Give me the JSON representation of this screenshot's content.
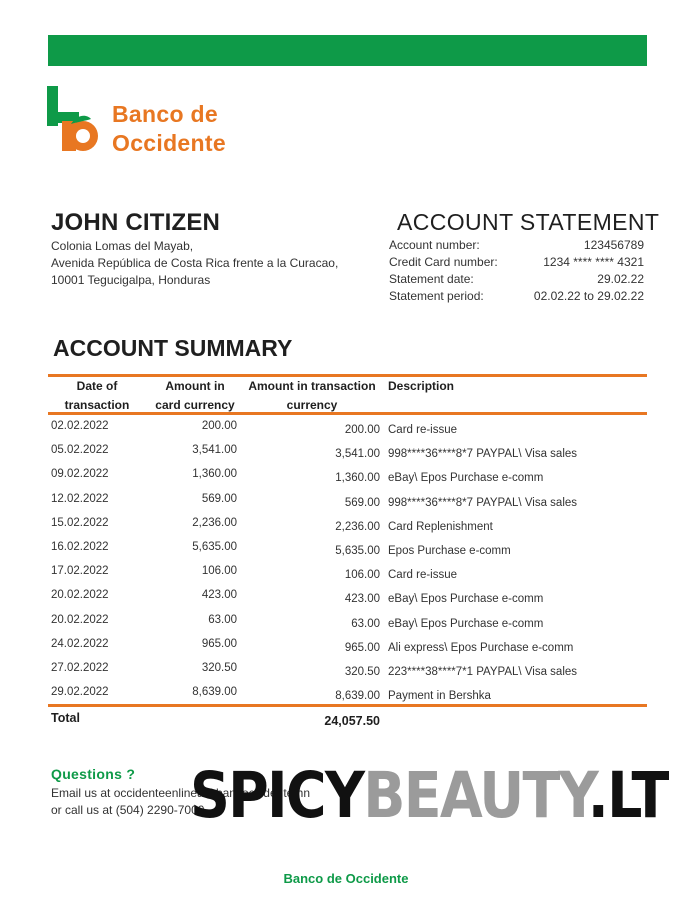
{
  "bank": {
    "logo_line1": "Banco de",
    "logo_line2": "Occidente",
    "brand_green": "#0e9a48",
    "brand_orange": "#e87722",
    "logo_icon": "bank-logo-icon"
  },
  "customer": {
    "name": "JOHN CITIZEN",
    "address_line1": "Colonia Lomas del Mayab,",
    "address_line2": "Avenida República de Costa Rica frente a la Curacao,",
    "address_line3": "10001 Tegucigalpa, Honduras"
  },
  "statement": {
    "title": "ACCOUNT STATEMENT",
    "account_number_label": "Account number:",
    "account_number": "123456789",
    "credit_card_label": "Credit Card number:",
    "credit_card": "1234 **** **** 4321",
    "statement_date_label": "Statement date:",
    "statement_date": "29.02.22",
    "statement_period_label": "Statement period:",
    "statement_period": "02.02.22 to 29.02.22"
  },
  "summary": {
    "title": "ACCOUNT SUMMARY",
    "headers": {
      "date_line1": "Date of",
      "date_line2": "transaction",
      "card_line1": "Amount in",
      "card_line2": "card currency",
      "trans_line1": "Amount in transaction",
      "trans_line2": "currency",
      "description": "Description"
    },
    "rows": [
      {
        "date": "02.02.2022",
        "card": "200.00",
        "trans": "200.00",
        "desc": "Card re-issue"
      },
      {
        "date": "05.02.2022",
        "card": "3,541.00",
        "trans": "3,541.00",
        "desc": "998****36****8*7 PAYPAL\\ Visa sales"
      },
      {
        "date": "09.02.2022",
        "card": "1,360.00",
        "trans": "1,360.00",
        "desc": "eBay\\ Epos Purchase e-comm"
      },
      {
        "date": "12.02.2022",
        "card": "569.00",
        "trans": "569.00",
        "desc": "998****36****8*7 PAYPAL\\ Visa sales"
      },
      {
        "date": "15.02.2022",
        "card": "2,236.00",
        "trans": "2,236.00",
        "desc": "Card Replenishment"
      },
      {
        "date": "16.02.2022",
        "card": "5,635.00",
        "trans": "5,635.00",
        "desc": "Epos Purchase e-comm"
      },
      {
        "date": "17.02.2022",
        "card": "106.00",
        "trans": "106.00",
        "desc": "Card re-issue"
      },
      {
        "date": "20.02.2022",
        "card": "423.00",
        "trans": "423.00",
        "desc": "eBay\\ Epos Purchase e-comm"
      },
      {
        "date": "20.02.2022",
        "card": "63.00",
        "trans": "63.00",
        "desc": "eBay\\ Epos Purchase e-comm"
      },
      {
        "date": "24.02.2022",
        "card": "965.00",
        "trans": "965.00",
        "desc": "Ali express\\ Epos Purchase e-comm"
      },
      {
        "date": "27.02.2022",
        "card": "320.50",
        "trans": "320.50",
        "desc": "223****38****7*1 PAYPAL\\ Visa sales"
      },
      {
        "date": "29.02.2022",
        "card": "8,639.00",
        "trans": "8,639.00",
        "desc": "Payment in Bershka"
      }
    ],
    "total_label": "Total",
    "total_value": "24,057.50"
  },
  "questions": {
    "title": "Questions ?",
    "line1": "Email us at occidenteenlinea@bancoccidente.hn",
    "line2": "or call us at (504) 2290-7000"
  },
  "watermark": {
    "part1": "SPICY",
    "part2": "BEAUTY",
    "part3": ".LT"
  },
  "footer": {
    "bank_name": "Banco de Occidente"
  }
}
